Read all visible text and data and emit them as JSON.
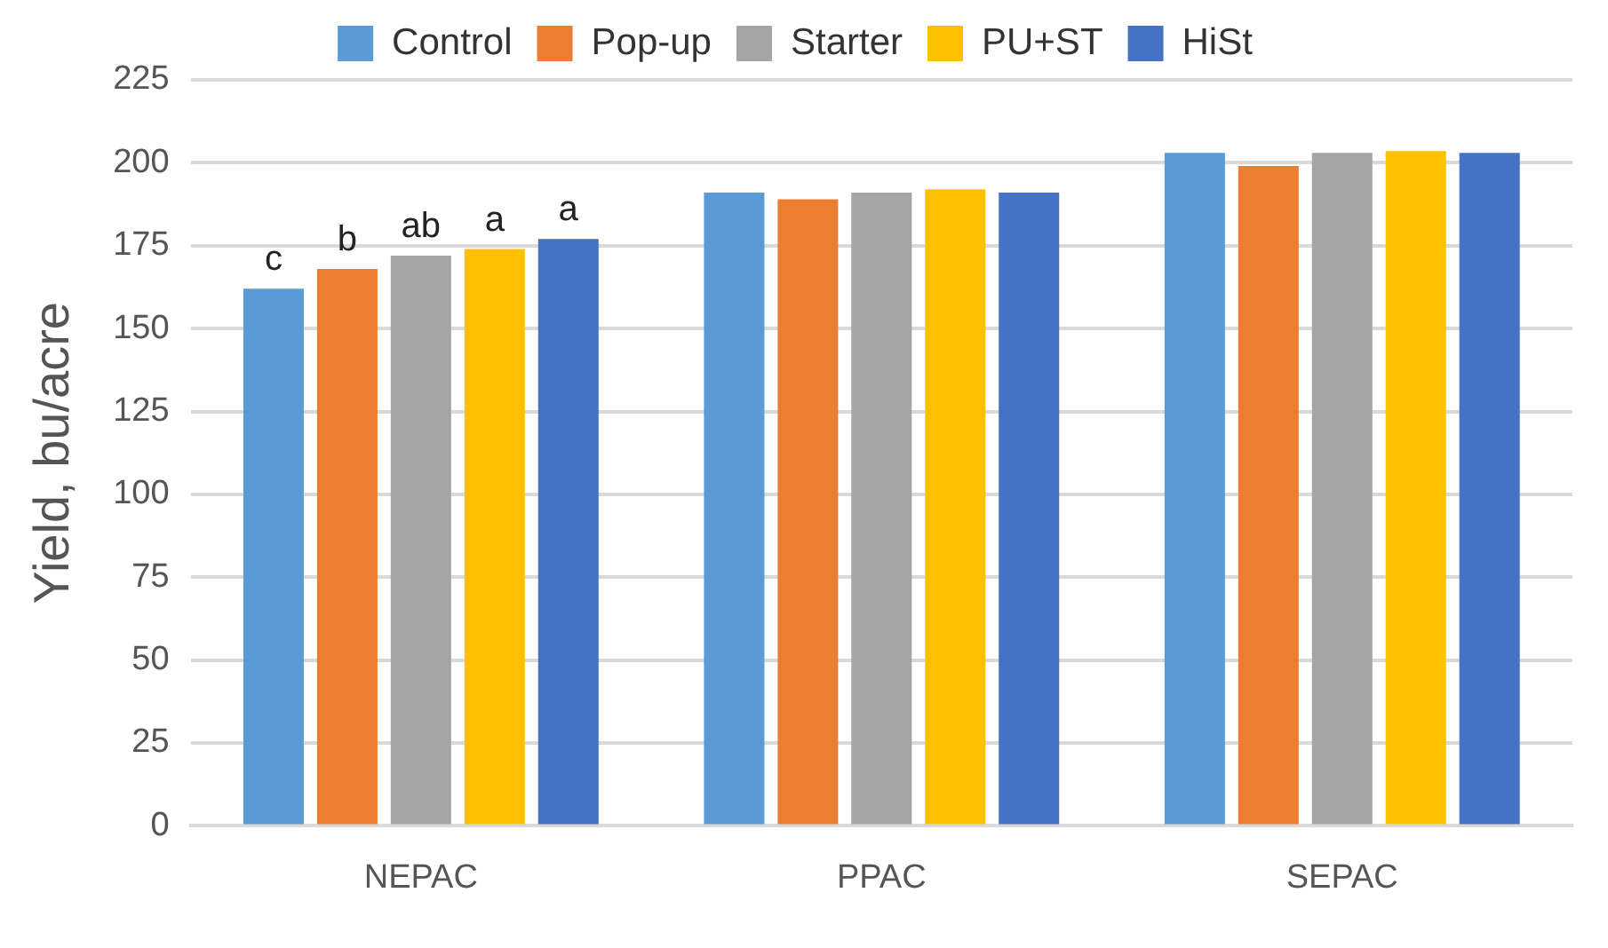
{
  "chart_data": {
    "type": "bar",
    "ylabel": "Yield, bu/acre",
    "categories": [
      "NEPAC",
      "PPAC",
      "SEPAC"
    ],
    "series": [
      {
        "name": "Control",
        "color": "#5b9bd5",
        "values": [
          162,
          191,
          203
        ],
        "value_labels": [
          "c",
          null,
          null
        ]
      },
      {
        "name": "Pop-up",
        "color": "#ed7d31",
        "values": [
          168,
          189,
          199
        ],
        "value_labels": [
          "b",
          null,
          null
        ]
      },
      {
        "name": "Starter",
        "color": "#a5a5a5",
        "values": [
          172,
          191,
          203
        ],
        "value_labels": [
          "ab",
          null,
          null
        ]
      },
      {
        "name": "PU+ST",
        "color": "#ffc000",
        "values": [
          174,
          192,
          203.5
        ],
        "value_labels": [
          "a",
          null,
          null
        ]
      },
      {
        "name": "HiSt",
        "color": "#4472c4",
        "values": [
          177,
          191,
          203
        ],
        "value_labels": [
          "a",
          null,
          null
        ]
      }
    ],
    "ylim": [
      0,
      225
    ],
    "yticks": [
      0,
      25,
      50,
      75,
      100,
      125,
      150,
      175,
      200,
      225
    ],
    "grid": "y",
    "legend": "top"
  }
}
